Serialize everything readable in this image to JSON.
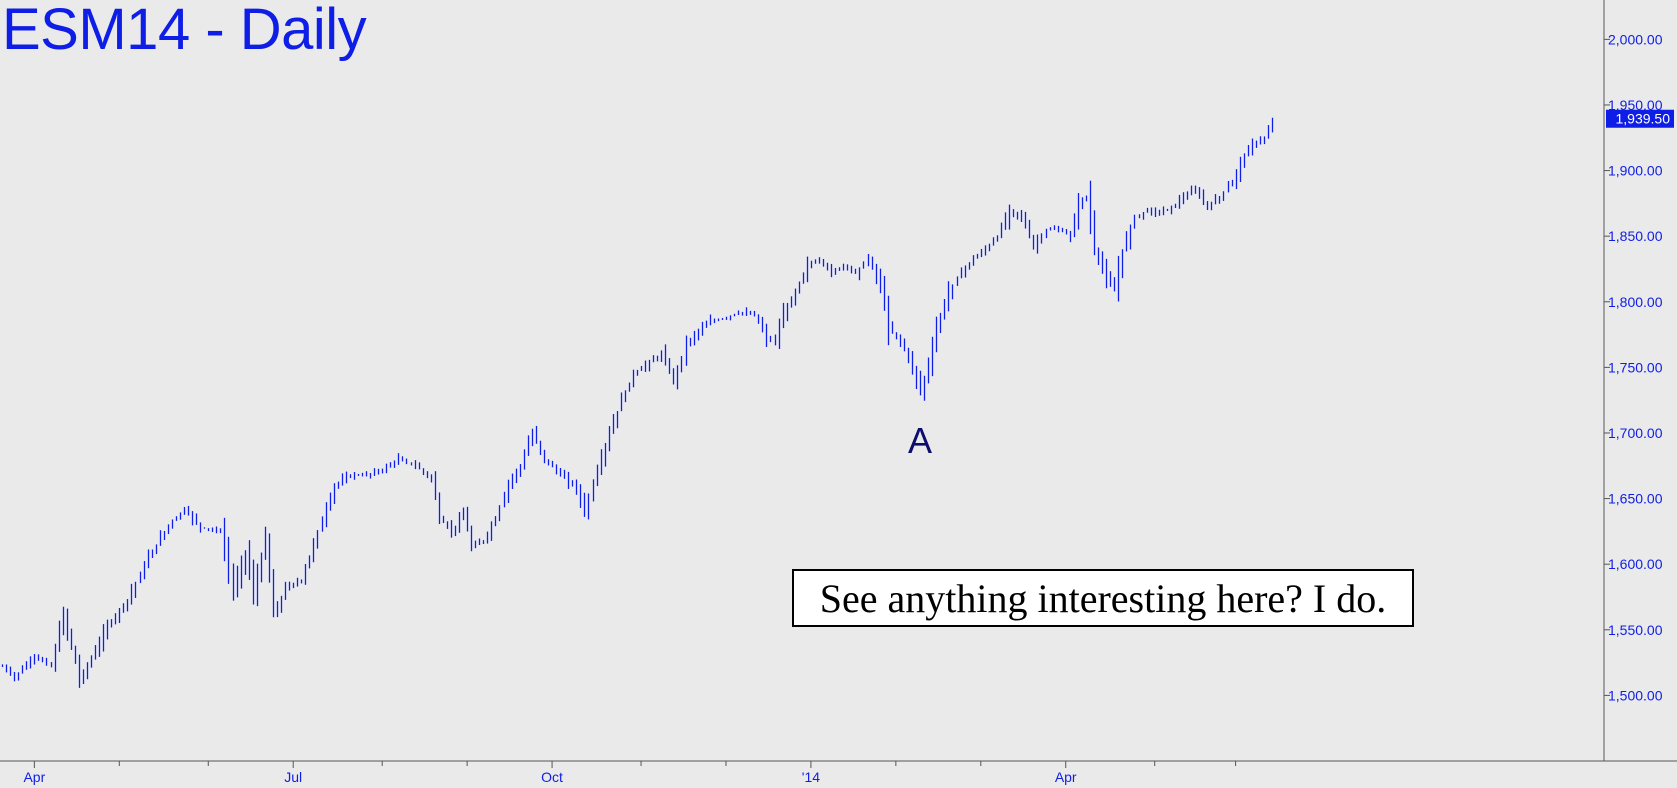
{
  "chart_data": {
    "type": "bar",
    "title": "ESM14 - Daily",
    "annotation": "See anything interesting here? I do.",
    "wave_label": "A",
    "last_price_label": "1,939.50",
    "last_price": 1939.5,
    "ylim": [
      1450,
      2030
    ],
    "y_ticks": [
      {
        "label": "2,000.00",
        "value": 2000
      },
      {
        "label": "1,950.00",
        "value": 1950
      },
      {
        "label": "1,900.00",
        "value": 1900
      },
      {
        "label": "1,850.00",
        "value": 1850
      },
      {
        "label": "1,800.00",
        "value": 1800
      },
      {
        "label": "1,750.00",
        "value": 1750
      },
      {
        "label": "1,700.00",
        "value": 1700
      },
      {
        "label": "1,650.00",
        "value": 1650
      },
      {
        "label": "1,600.00",
        "value": 1600
      },
      {
        "label": "1,550.00",
        "value": 1550
      },
      {
        "label": "1,500.00",
        "value": 1500
      }
    ],
    "x_ticks": [
      {
        "label": "Apr",
        "bar_index": 8
      },
      {
        "label": "Jul",
        "bar_index": 72
      },
      {
        "label": "Oct",
        "bar_index": 136
      },
      {
        "label": "'14",
        "bar_index": 200
      },
      {
        "label": "Apr",
        "bar_index": 263
      }
    ],
    "minor_tick_bars": [
      29,
      51,
      94,
      115,
      158,
      179,
      221,
      242,
      285,
      305
    ],
    "colors": {
      "bars": "#0f1ee6",
      "background": "#eaeaea",
      "title": "#0f1ee6",
      "axis": "#555555",
      "price_tag": "#0f1ee6",
      "label_A": "#0d0d6e"
    },
    "grid": false,
    "series": [
      {
        "anchors": [
          [
            0,
            1522
          ],
          [
            3,
            1514
          ],
          [
            8,
            1530
          ],
          [
            12,
            1522
          ],
          [
            15,
            1562
          ],
          [
            19,
            1512
          ],
          [
            22,
            1528
          ],
          [
            26,
            1553
          ],
          [
            31,
            1573
          ],
          [
            36,
            1605
          ],
          [
            41,
            1630
          ],
          [
            45,
            1642
          ],
          [
            49,
            1628
          ],
          [
            54,
            1625
          ],
          [
            57,
            1580
          ],
          [
            60,
            1610
          ],
          [
            62,
            1576
          ],
          [
            65,
            1620
          ],
          [
            67,
            1560
          ],
          [
            70,
            1582
          ],
          [
            74,
            1588
          ],
          [
            78,
            1625
          ],
          [
            82,
            1660
          ],
          [
            86,
            1668
          ],
          [
            90,
            1668
          ],
          [
            94,
            1672
          ],
          [
            98,
            1680
          ],
          [
            102,
            1675
          ],
          [
            106,
            1665
          ],
          [
            108,
            1635
          ],
          [
            111,
            1625
          ],
          [
            114,
            1638
          ],
          [
            116,
            1613
          ],
          [
            119,
            1618
          ],
          [
            122,
            1635
          ],
          [
            125,
            1662
          ],
          [
            128,
            1675
          ],
          [
            131,
            1700
          ],
          [
            134,
            1680
          ],
          [
            138,
            1668
          ],
          [
            142,
            1658
          ],
          [
            144,
            1640
          ],
          [
            147,
            1672
          ],
          [
            150,
            1700
          ],
          [
            153,
            1725
          ],
          [
            156,
            1745
          ],
          [
            159,
            1752
          ],
          [
            163,
            1760
          ],
          [
            166,
            1740
          ],
          [
            169,
            1768
          ],
          [
            172,
            1778
          ],
          [
            175,
            1785
          ],
          [
            179,
            1788
          ],
          [
            182,
            1792
          ],
          [
            186,
            1790
          ],
          [
            189,
            1772
          ],
          [
            191,
            1770
          ],
          [
            193,
            1790
          ],
          [
            196,
            1808
          ],
          [
            199,
            1828
          ],
          [
            202,
            1832
          ],
          [
            205,
            1822
          ],
          [
            208,
            1828
          ],
          [
            211,
            1822
          ],
          [
            214,
            1833
          ],
          [
            217,
            1812
          ],
          [
            219,
            1780
          ],
          [
            222,
            1770
          ],
          [
            225,
            1750
          ],
          [
            227,
            1732
          ],
          [
            229,
            1752
          ],
          [
            231,
            1780
          ],
          [
            234,
            1808
          ],
          [
            237,
            1823
          ],
          [
            240,
            1833
          ],
          [
            243,
            1840
          ],
          [
            246,
            1850
          ],
          [
            249,
            1870
          ],
          [
            252,
            1865
          ],
          [
            255,
            1842
          ],
          [
            258,
            1855
          ],
          [
            261,
            1855
          ],
          [
            264,
            1850
          ],
          [
            266,
            1875
          ],
          [
            268,
            1880
          ],
          [
            270,
            1840
          ],
          [
            273,
            1818
          ],
          [
            275,
            1808
          ],
          [
            277,
            1840
          ],
          [
            280,
            1865
          ],
          [
            283,
            1870
          ],
          [
            286,
            1868
          ],
          [
            289,
            1872
          ],
          [
            292,
            1880
          ],
          [
            295,
            1885
          ],
          [
            298,
            1872
          ],
          [
            301,
            1880
          ],
          [
            304,
            1892
          ],
          [
            306,
            1906
          ],
          [
            308,
            1916
          ],
          [
            310,
            1922
          ],
          [
            312,
            1925
          ],
          [
            314,
            1935
          ]
        ]
      }
    ]
  }
}
